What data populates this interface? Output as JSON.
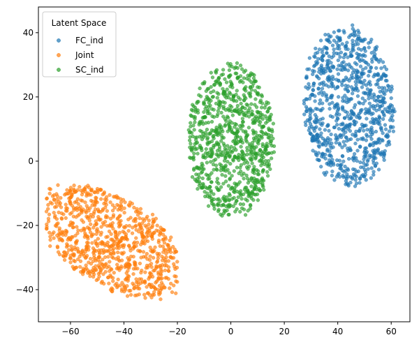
{
  "chart_data": {
    "type": "scatter",
    "title": "",
    "xlabel": "",
    "ylabel": "",
    "xlim": [
      -72,
      67
    ],
    "ylim": [
      -50,
      48
    ],
    "xticks": [
      -60,
      -40,
      -20,
      0,
      20,
      40,
      60
    ],
    "yticks": [
      -40,
      -20,
      0,
      20,
      40
    ],
    "xtick_labels": [
      "−60",
      "−40",
      "−20",
      "0",
      "20",
      "40",
      "60"
    ],
    "ytick_labels": [
      "−40",
      "−20",
      "0",
      "20",
      "40"
    ],
    "grid": false,
    "legend": {
      "title": "Latent Space",
      "placement": "top-left"
    },
    "series": [
      {
        "name": "FC_ind",
        "color": "#1f77b4",
        "count": 900,
        "distribution": {
          "shape": "elliptical cluster",
          "x_range": [
            20,
            64
          ],
          "y_range": [
            -9,
            44
          ],
          "center": [
            45,
            18
          ]
        }
      },
      {
        "name": "Joint",
        "color": "#ff7f0e",
        "count": 900,
        "distribution": {
          "shape": "elongated diagonal cluster",
          "x_range": [
            -69,
            -20
          ],
          "y_range": [
            -46,
            -4
          ],
          "center": [
            -45,
            -24
          ]
        }
      },
      {
        "name": "SC_ind",
        "color": "#2ca02c",
        "count": 900,
        "distribution": {
          "shape": "elliptical cluster",
          "x_range": [
            -18,
            18
          ],
          "y_range": [
            -19,
            32
          ],
          "center": [
            0,
            6
          ]
        }
      }
    ]
  }
}
